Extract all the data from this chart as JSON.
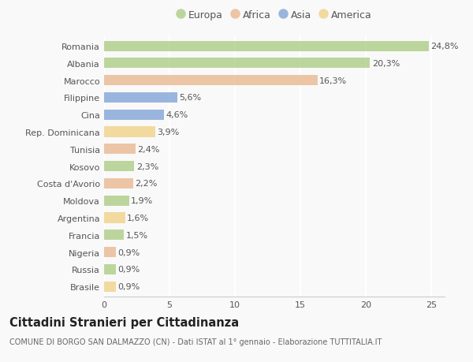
{
  "categories": [
    "Romania",
    "Albania",
    "Marocco",
    "Filippine",
    "Cina",
    "Rep. Dominicana",
    "Tunisia",
    "Kosovo",
    "Costa d'Avorio",
    "Moldova",
    "Argentina",
    "Francia",
    "Nigeria",
    "Russia",
    "Brasile"
  ],
  "values": [
    24.8,
    20.3,
    16.3,
    5.6,
    4.6,
    3.9,
    2.4,
    2.3,
    2.2,
    1.9,
    1.6,
    1.5,
    0.9,
    0.9,
    0.9
  ],
  "labels": [
    "24,8%",
    "20,3%",
    "16,3%",
    "5,6%",
    "4,6%",
    "3,9%",
    "2,4%",
    "2,3%",
    "2,2%",
    "1,9%",
    "1,6%",
    "1,5%",
    "0,9%",
    "0,9%",
    "0,9%"
  ],
  "continent": [
    "Europa",
    "Europa",
    "Africa",
    "Asia",
    "Asia",
    "America",
    "Africa",
    "Europa",
    "Africa",
    "Europa",
    "America",
    "Europa",
    "Africa",
    "Europa",
    "America"
  ],
  "colors": {
    "Europa": "#a8c97f",
    "Africa": "#e8b48a",
    "Asia": "#7b9fd4",
    "America": "#f0d080"
  },
  "legend_order": [
    "Europa",
    "Africa",
    "Asia",
    "America"
  ],
  "title": "Cittadini Stranieri per Cittadinanza",
  "subtitle": "COMUNE DI BORGO SAN DALMAZZO (CN) - Dati ISTAT al 1° gennaio - Elaborazione TUTTITALIA.IT",
  "xlim": [
    0,
    26
  ],
  "xticks": [
    0,
    5,
    10,
    15,
    20,
    25
  ],
  "background_color": "#f9f9f9",
  "grid_color": "#e8e8e8",
  "bar_height": 0.6,
  "label_fontsize": 8,
  "tick_fontsize": 8,
  "title_fontsize": 10.5,
  "subtitle_fontsize": 7
}
